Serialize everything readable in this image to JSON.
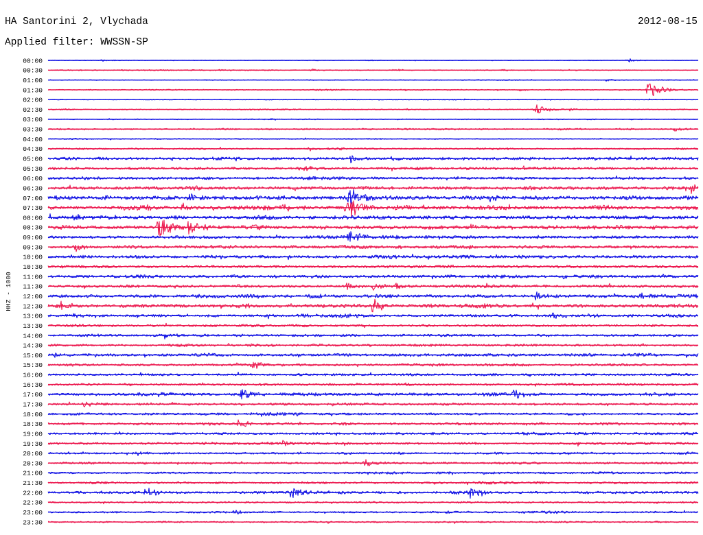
{
  "header": {
    "station": "HA Santorini 2, Vlychada",
    "date": "2012-08-15",
    "filter": "Applied filter: WWSSN-SP"
  },
  "chart_data": {
    "type": "line",
    "title": "HA Santorini 2, Vlychada",
    "ylabel": "HHZ - 1000",
    "xlim": [
      0,
      30
    ],
    "grid": false,
    "row_labels": [
      "00:00",
      "00:30",
      "01:00",
      "01:30",
      "02:00",
      "02:30",
      "03:00",
      "03:30",
      "04:00",
      "04:30",
      "05:00",
      "05:30",
      "06:00",
      "06:30",
      "07:00",
      "07:30",
      "08:00",
      "08:30",
      "09:00",
      "09:30",
      "10:00",
      "10:30",
      "11:00",
      "11:30",
      "12:00",
      "12:30",
      "13:00",
      "13:30",
      "14:00",
      "14:30",
      "15:00",
      "15:30",
      "16:00",
      "16:30",
      "17:00",
      "17:30",
      "18:00",
      "18:30",
      "19:00",
      "19:30",
      "20:00",
      "20:30",
      "21:00",
      "21:30",
      "22:00",
      "22:30",
      "23:00",
      "23:30"
    ],
    "colors": {
      "even": "#1212e4",
      "odd": "#ec1a50"
    },
    "noise": [
      0.5,
      0.6,
      0.5,
      0.7,
      0.5,
      0.7,
      0.6,
      0.9,
      0.7,
      1.1,
      1.8,
      1.8,
      1.8,
      2.2,
      2.6,
      2.6,
      2.3,
      2.4,
      1.9,
      2.0,
      2.0,
      1.8,
      2.0,
      1.8,
      2.0,
      2.3,
      1.8,
      1.6,
      1.6,
      1.5,
      1.8,
      1.6,
      1.6,
      1.5,
      1.8,
      1.5,
      1.5,
      1.5,
      1.6,
      1.5,
      1.4,
      1.3,
      1.3,
      1.3,
      1.6,
      1.2,
      1.2,
      1.0
    ],
    "events": [
      {
        "row": "00:00",
        "t": 2.5,
        "amp": 2
      },
      {
        "row": "00:00",
        "t": 26.8,
        "amp": 3
      },
      {
        "row": "00:30",
        "t": 12.2,
        "amp": 2
      },
      {
        "row": "00:30",
        "t": 16.1,
        "amp": 2
      },
      {
        "row": "00:30",
        "t": 21.0,
        "amp": 1.5
      },
      {
        "row": "01:00",
        "t": 25.8,
        "amp": 2
      },
      {
        "row": "01:30",
        "t": 21.8,
        "amp": 1.5
      },
      {
        "row": "01:30",
        "t": 27.7,
        "amp": 12
      },
      {
        "row": "02:30",
        "t": 16.6,
        "amp": 1.5
      },
      {
        "row": "02:30",
        "t": 22.5,
        "amp": 8
      },
      {
        "row": "02:30",
        "t": 24.1,
        "amp": 3
      },
      {
        "row": "03:00",
        "t": 10.3,
        "amp": 2
      },
      {
        "row": "03:30",
        "t": 28.9,
        "amp": 4
      },
      {
        "row": "04:30",
        "t": 12.1,
        "amp": 3
      },
      {
        "row": "04:30",
        "t": 13.3,
        "amp": 3
      },
      {
        "row": "05:00",
        "t": 8.6,
        "amp": 5
      },
      {
        "row": "05:00",
        "t": 14.0,
        "amp": 6
      },
      {
        "row": "05:00",
        "t": 15.9,
        "amp": 3
      },
      {
        "row": "05:30",
        "t": 11.6,
        "amp": 4
      },
      {
        "row": "06:00",
        "t": 12.3,
        "amp": 3
      },
      {
        "row": "06:30",
        "t": 11.3,
        "amp": 3
      },
      {
        "row": "06:30",
        "t": 29.7,
        "amp": 6
      },
      {
        "row": "07:00",
        "t": 6.5,
        "amp": 6
      },
      {
        "row": "07:00",
        "t": 13.9,
        "amp": 14
      },
      {
        "row": "07:00",
        "t": 20.4,
        "amp": 6
      },
      {
        "row": "07:00",
        "t": 26.8,
        "amp": 4
      },
      {
        "row": "07:30",
        "t": 6.2,
        "amp": 5
      },
      {
        "row": "07:30",
        "t": 10.8,
        "amp": 6
      },
      {
        "row": "07:30",
        "t": 13.8,
        "amp": 16
      },
      {
        "row": "08:00",
        "t": 1.2,
        "amp": 5
      },
      {
        "row": "08:00",
        "t": 13.9,
        "amp": 4
      },
      {
        "row": "08:30",
        "t": 5.1,
        "amp": 14
      },
      {
        "row": "08:30",
        "t": 6.5,
        "amp": 8
      },
      {
        "row": "08:30",
        "t": 19.5,
        "amp": 5
      },
      {
        "row": "09:00",
        "t": 13.9,
        "amp": 10
      },
      {
        "row": "09:00",
        "t": 15.9,
        "amp": 4
      },
      {
        "row": "09:30",
        "t": 1.3,
        "amp": 6
      },
      {
        "row": "09:30",
        "t": 22.0,
        "amp": 3
      },
      {
        "row": "10:30",
        "t": 18.6,
        "amp": 3
      },
      {
        "row": "11:30",
        "t": 13.8,
        "amp": 5
      },
      {
        "row": "11:30",
        "t": 15.0,
        "amp": 6
      },
      {
        "row": "11:30",
        "t": 16.1,
        "amp": 5
      },
      {
        "row": "12:00",
        "t": 12.1,
        "amp": 5
      },
      {
        "row": "12:00",
        "t": 22.5,
        "amp": 6
      },
      {
        "row": "12:00",
        "t": 27.3,
        "amp": 5
      },
      {
        "row": "12:30",
        "t": 0.5,
        "amp": 6
      },
      {
        "row": "12:30",
        "t": 14.0,
        "amp": 4
      },
      {
        "row": "12:30",
        "t": 15.0,
        "amp": 10
      },
      {
        "row": "13:00",
        "t": 1.2,
        "amp": 3
      },
      {
        "row": "13:00",
        "t": 23.3,
        "amp": 6
      },
      {
        "row": "13:00",
        "t": 25.0,
        "amp": 4
      },
      {
        "row": "14:00",
        "t": 5.4,
        "amp": 4
      },
      {
        "row": "15:00",
        "t": 0.3,
        "amp": 3
      },
      {
        "row": "15:30",
        "t": 9.4,
        "amp": 7
      },
      {
        "row": "17:00",
        "t": 5.1,
        "amp": 5
      },
      {
        "row": "17:00",
        "t": 8.9,
        "amp": 9
      },
      {
        "row": "17:00",
        "t": 21.5,
        "amp": 8
      },
      {
        "row": "17:30",
        "t": 1.6,
        "amp": 5
      },
      {
        "row": "17:30",
        "t": 13.1,
        "amp": 3
      },
      {
        "row": "18:30",
        "t": 8.8,
        "amp": 7
      },
      {
        "row": "19:30",
        "t": 10.9,
        "amp": 5
      },
      {
        "row": "20:00",
        "t": 4.1,
        "amp": 3
      },
      {
        "row": "20:30",
        "t": 14.6,
        "amp": 6
      },
      {
        "row": "22:00",
        "t": 4.5,
        "amp": 9
      },
      {
        "row": "22:00",
        "t": 11.2,
        "amp": 11
      },
      {
        "row": "22:00",
        "t": 19.5,
        "amp": 9
      },
      {
        "row": "23:00",
        "t": 8.6,
        "amp": 4
      }
    ]
  }
}
